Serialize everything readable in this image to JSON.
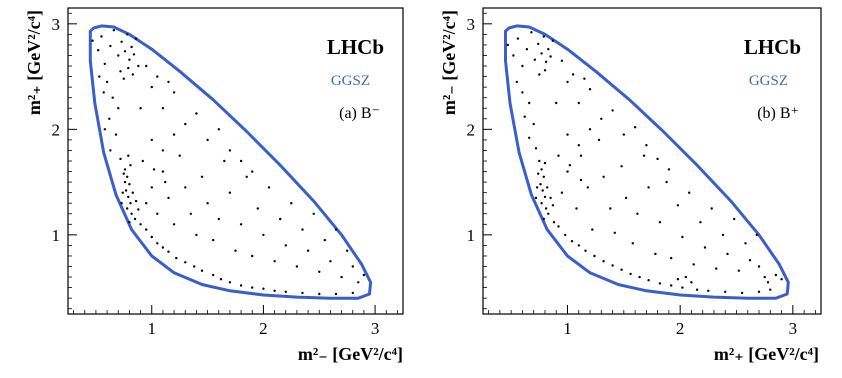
{
  "chart_data": [
    {
      "type": "scatter",
      "experiment_label": "LHCb",
      "method_label": "GGSZ",
      "panel_label": "(a) B⁻",
      "xlabel": "m²₋ [GeV²/c⁴]",
      "ylabel": "m²₊ [GeV²/c⁴]",
      "xlim": [
        0.25,
        3.25
      ],
      "ylim": [
        0.25,
        3.15
      ],
      "xticks": [
        1,
        2,
        3
      ],
      "yticks": [
        1,
        2,
        3
      ],
      "grid": false,
      "kinematic_boundary_color": "#3a5fc8",
      "marker_color": "#000000",
      "boundary": [
        [
          0.45,
          2.93
        ],
        [
          0.48,
          2.96
        ],
        [
          0.55,
          2.98
        ],
        [
          0.66,
          2.97
        ],
        [
          0.8,
          2.9
        ],
        [
          1.0,
          2.76
        ],
        [
          1.25,
          2.55
        ],
        [
          1.55,
          2.28
        ],
        [
          1.85,
          1.98
        ],
        [
          2.15,
          1.66
        ],
        [
          2.45,
          1.32
        ],
        [
          2.7,
          1.0
        ],
        [
          2.88,
          0.72
        ],
        [
          2.96,
          0.55
        ],
        [
          2.95,
          0.44
        ],
        [
          2.85,
          0.4
        ],
        [
          2.6,
          0.4
        ],
        [
          2.3,
          0.41
        ],
        [
          2.0,
          0.43
        ],
        [
          1.7,
          0.47
        ],
        [
          1.45,
          0.53
        ],
        [
          1.2,
          0.64
        ],
        [
          1.0,
          0.8
        ],
        [
          0.82,
          1.05
        ],
        [
          0.68,
          1.38
        ],
        [
          0.57,
          1.78
        ],
        [
          0.49,
          2.25
        ],
        [
          0.45,
          2.65
        ],
        [
          0.45,
          2.93
        ]
      ],
      "points": [
        [
          0.47,
          2.84
        ],
        [
          0.52,
          2.75
        ],
        [
          0.55,
          2.88
        ],
        [
          0.58,
          2.62
        ],
        [
          0.63,
          2.79
        ],
        [
          0.66,
          2.94
        ],
        [
          0.7,
          2.7
        ],
        [
          0.73,
          2.83
        ],
        [
          0.76,
          2.74
        ],
        [
          0.78,
          2.9
        ],
        [
          0.8,
          2.66
        ],
        [
          0.82,
          2.78
        ],
        [
          0.84,
          2.71
        ],
        [
          0.86,
          2.86
        ],
        [
          0.88,
          2.6
        ],
        [
          0.72,
          2.55
        ],
        [
          0.75,
          2.48
        ],
        [
          0.79,
          2.58
        ],
        [
          0.83,
          2.52
        ],
        [
          0.6,
          2.45
        ],
        [
          0.53,
          2.5
        ],
        [
          0.57,
          2.35
        ],
        [
          0.65,
          2.3
        ],
        [
          0.7,
          2.2
        ],
        [
          0.62,
          2.1
        ],
        [
          0.58,
          2.0
        ],
        [
          0.68,
          1.95
        ],
        [
          0.63,
          1.8
        ],
        [
          0.72,
          1.72
        ],
        [
          0.76,
          1.62
        ],
        [
          0.78,
          1.55
        ],
        [
          0.8,
          1.48
        ],
        [
          0.77,
          1.42
        ],
        [
          0.79,
          1.36
        ],
        [
          0.81,
          1.3
        ],
        [
          0.78,
          1.25
        ],
        [
          0.82,
          1.2
        ],
        [
          0.85,
          1.15
        ],
        [
          0.8,
          1.12
        ],
        [
          0.76,
          1.5
        ],
        [
          0.74,
          1.4
        ],
        [
          0.83,
          1.4
        ],
        [
          0.86,
          1.32
        ],
        [
          0.88,
          1.24
        ],
        [
          0.75,
          1.58
        ],
        [
          0.81,
          1.66
        ],
        [
          0.79,
          1.75
        ],
        [
          0.73,
          1.3
        ],
        [
          0.9,
          1.1
        ],
        [
          0.95,
          1.05
        ],
        [
          1.0,
          0.98
        ],
        [
          1.05,
          0.92
        ],
        [
          1.1,
          0.88
        ],
        [
          1.15,
          0.84
        ],
        [
          1.22,
          0.78
        ],
        [
          1.3,
          0.74
        ],
        [
          1.38,
          0.7
        ],
        [
          1.45,
          0.66
        ],
        [
          1.55,
          0.62
        ],
        [
          1.62,
          0.58
        ],
        [
          1.7,
          0.55
        ],
        [
          1.8,
          0.52
        ],
        [
          1.9,
          0.5
        ],
        [
          2.0,
          0.49
        ],
        [
          2.1,
          0.47
        ],
        [
          2.2,
          0.46
        ],
        [
          2.35,
          0.45
        ],
        [
          2.5,
          0.44
        ],
        [
          2.65,
          0.44
        ],
        [
          2.8,
          0.45
        ],
        [
          0.95,
          1.3
        ],
        [
          1.0,
          1.45
        ],
        [
          1.05,
          1.2
        ],
        [
          1.1,
          1.6
        ],
        [
          1.15,
          1.35
        ],
        [
          1.2,
          1.1
        ],
        [
          1.25,
          1.75
        ],
        [
          1.3,
          1.45
        ],
        [
          1.35,
          1.2
        ],
        [
          1.4,
          1.0
        ],
        [
          1.45,
          1.55
        ],
        [
          1.5,
          1.3
        ],
        [
          1.55,
          0.95
        ],
        [
          1.6,
          1.15
        ],
        [
          1.65,
          1.7
        ],
        [
          1.7,
          1.4
        ],
        [
          1.75,
          0.85
        ],
        [
          1.8,
          1.1
        ],
        [
          1.85,
          1.55
        ],
        [
          1.9,
          0.8
        ],
        [
          1.95,
          1.25
        ],
        [
          2.0,
          1.0
        ],
        [
          2.05,
          1.45
        ],
        [
          2.1,
          0.75
        ],
        [
          2.15,
          1.15
        ],
        [
          2.2,
          0.9
        ],
        [
          2.25,
          1.3
        ],
        [
          2.3,
          0.7
        ],
        [
          2.35,
          1.05
        ],
        [
          2.4,
          0.85
        ],
        [
          2.45,
          1.2
        ],
        [
          2.5,
          0.65
        ],
        [
          2.55,
          0.95
        ],
        [
          2.6,
          0.75
        ],
        [
          2.65,
          1.05
        ],
        [
          2.7,
          0.6
        ],
        [
          2.75,
          0.85
        ],
        [
          2.8,
          0.7
        ],
        [
          2.85,
          0.55
        ],
        [
          2.9,
          0.62
        ],
        [
          1.0,
          2.4
        ],
        [
          1.1,
          2.2
        ],
        [
          1.2,
          2.35
        ],
        [
          1.3,
          2.05
        ],
        [
          1.4,
          2.15
        ],
        [
          1.5,
          1.9
        ],
        [
          1.6,
          2.0
        ],
        [
          1.7,
          1.8
        ],
        [
          1.8,
          1.7
        ],
        [
          1.9,
          1.6
        ],
        [
          0.95,
          2.6
        ],
        [
          1.05,
          2.5
        ],
        [
          1.15,
          2.45
        ],
        [
          0.9,
          2.2
        ],
        [
          1.0,
          1.9
        ],
        [
          1.1,
          1.8
        ],
        [
          1.2,
          1.95
        ],
        [
          0.92,
          1.7
        ],
        [
          1.02,
          1.62
        ],
        [
          1.12,
          1.5
        ]
      ]
    },
    {
      "type": "scatter",
      "experiment_label": "LHCb",
      "method_label": "GGSZ",
      "panel_label": "(b) B⁺",
      "xlabel": "m²₊ [GeV²/c⁴]",
      "ylabel": "m²₋ [GeV²/c⁴]",
      "xlim": [
        0.25,
        3.25
      ],
      "ylim": [
        0.25,
        3.15
      ],
      "xticks": [
        1,
        2,
        3
      ],
      "yticks": [
        1,
        2,
        3
      ],
      "grid": false,
      "kinematic_boundary_color": "#3a5fc8",
      "marker_color": "#000000",
      "boundary": [
        [
          0.45,
          2.93
        ],
        [
          0.48,
          2.96
        ],
        [
          0.55,
          2.98
        ],
        [
          0.66,
          2.97
        ],
        [
          0.8,
          2.9
        ],
        [
          1.0,
          2.76
        ],
        [
          1.25,
          2.55
        ],
        [
          1.55,
          2.28
        ],
        [
          1.85,
          1.98
        ],
        [
          2.15,
          1.66
        ],
        [
          2.45,
          1.32
        ],
        [
          2.7,
          1.0
        ],
        [
          2.88,
          0.72
        ],
        [
          2.96,
          0.55
        ],
        [
          2.95,
          0.44
        ],
        [
          2.85,
          0.4
        ],
        [
          2.6,
          0.4
        ],
        [
          2.3,
          0.41
        ],
        [
          2.0,
          0.43
        ],
        [
          1.7,
          0.47
        ],
        [
          1.45,
          0.53
        ],
        [
          1.2,
          0.64
        ],
        [
          1.0,
          0.8
        ],
        [
          0.82,
          1.05
        ],
        [
          0.68,
          1.38
        ],
        [
          0.57,
          1.78
        ],
        [
          0.49,
          2.25
        ],
        [
          0.45,
          2.65
        ],
        [
          0.45,
          2.93
        ]
      ],
      "points": [
        [
          0.47,
          2.8
        ],
        [
          0.52,
          2.7
        ],
        [
          0.56,
          2.86
        ],
        [
          0.6,
          2.6
        ],
        [
          0.64,
          2.76
        ],
        [
          0.68,
          2.92
        ],
        [
          0.71,
          2.66
        ],
        [
          0.74,
          2.81
        ],
        [
          0.77,
          2.72
        ],
        [
          0.79,
          2.88
        ],
        [
          0.81,
          2.64
        ],
        [
          0.83,
          2.76
        ],
        [
          0.85,
          2.69
        ],
        [
          0.87,
          2.84
        ],
        [
          0.75,
          2.52
        ],
        [
          0.8,
          2.56
        ],
        [
          0.55,
          2.45
        ],
        [
          0.6,
          2.35
        ],
        [
          0.66,
          2.25
        ],
        [
          0.62,
          2.12
        ],
        [
          0.7,
          2.05
        ],
        [
          0.66,
          1.92
        ],
        [
          0.72,
          1.82
        ],
        [
          0.75,
          1.7
        ],
        [
          0.77,
          1.62
        ],
        [
          0.79,
          1.55
        ],
        [
          0.76,
          1.48
        ],
        [
          0.78,
          1.42
        ],
        [
          0.8,
          1.36
        ],
        [
          0.77,
          1.3
        ],
        [
          0.81,
          1.25
        ],
        [
          0.83,
          1.2
        ],
        [
          0.79,
          1.15
        ],
        [
          0.73,
          1.45
        ],
        [
          0.82,
          1.45
        ],
        [
          0.85,
          1.35
        ],
        [
          0.87,
          1.28
        ],
        [
          0.74,
          1.58
        ],
        [
          0.8,
          1.68
        ],
        [
          0.72,
          1.35
        ],
        [
          0.88,
          1.12
        ],
        [
          0.92,
          1.08
        ],
        [
          0.98,
          1.0
        ],
        [
          1.04,
          0.94
        ],
        [
          1.1,
          0.9
        ],
        [
          1.16,
          0.85
        ],
        [
          1.24,
          0.8
        ],
        [
          1.32,
          0.75
        ],
        [
          1.4,
          0.71
        ],
        [
          1.48,
          0.67
        ],
        [
          1.56,
          0.63
        ],
        [
          1.64,
          0.6
        ],
        [
          1.72,
          0.57
        ],
        [
          1.82,
          0.54
        ],
        [
          1.92,
          0.52
        ],
        [
          2.02,
          0.5
        ],
        [
          2.1,
          0.55
        ],
        [
          2.05,
          0.6
        ],
        [
          1.98,
          0.58
        ],
        [
          2.15,
          0.48
        ],
        [
          2.25,
          0.47
        ],
        [
          2.4,
          0.46
        ],
        [
          2.55,
          0.45
        ],
        [
          2.7,
          0.46
        ],
        [
          2.8,
          0.48
        ],
        [
          2.75,
          0.6
        ],
        [
          2.7,
          0.7
        ],
        [
          2.78,
          0.55
        ],
        [
          0.95,
          1.4
        ],
        [
          1.0,
          1.6
        ],
        [
          1.08,
          1.25
        ],
        [
          1.12,
          1.75
        ],
        [
          1.18,
          1.45
        ],
        [
          1.22,
          1.05
        ],
        [
          1.28,
          1.9
        ],
        [
          1.32,
          1.55
        ],
        [
          1.38,
          1.25
        ],
        [
          1.42,
          1.02
        ],
        [
          1.48,
          1.65
        ],
        [
          1.52,
          1.35
        ],
        [
          1.58,
          0.92
        ],
        [
          1.62,
          1.2
        ],
        [
          1.68,
          1.75
        ],
        [
          1.72,
          1.45
        ],
        [
          1.78,
          0.82
        ],
        [
          1.82,
          1.12
        ],
        [
          1.88,
          1.5
        ],
        [
          1.92,
          0.78
        ],
        [
          1.98,
          1.28
        ],
        [
          2.02,
          0.98
        ],
        [
          2.08,
          1.4
        ],
        [
          2.12,
          0.72
        ],
        [
          2.18,
          1.12
        ],
        [
          2.22,
          0.88
        ],
        [
          2.28,
          1.25
        ],
        [
          2.32,
          0.68
        ],
        [
          2.38,
          1.0
        ],
        [
          2.42,
          0.82
        ],
        [
          2.48,
          1.15
        ],
        [
          2.52,
          0.66
        ],
        [
          2.58,
          0.92
        ],
        [
          2.62,
          0.76
        ],
        [
          2.68,
          1.0
        ],
        [
          2.85,
          0.62
        ],
        [
          2.9,
          0.58
        ],
        [
          1.0,
          2.45
        ],
        [
          1.1,
          2.25
        ],
        [
          1.2,
          2.38
        ],
        [
          1.3,
          2.1
        ],
        [
          1.4,
          2.18
        ],
        [
          1.5,
          1.95
        ],
        [
          1.6,
          2.02
        ],
        [
          1.7,
          1.85
        ],
        [
          1.8,
          1.72
        ],
        [
          1.9,
          1.62
        ],
        [
          0.95,
          2.65
        ],
        [
          1.05,
          2.52
        ],
        [
          1.15,
          2.48
        ],
        [
          0.9,
          2.25
        ],
        [
          1.0,
          1.95
        ],
        [
          1.1,
          1.85
        ],
        [
          1.2,
          2.0
        ],
        [
          0.92,
          1.75
        ],
        [
          1.02,
          1.66
        ],
        [
          1.12,
          1.52
        ]
      ]
    }
  ]
}
